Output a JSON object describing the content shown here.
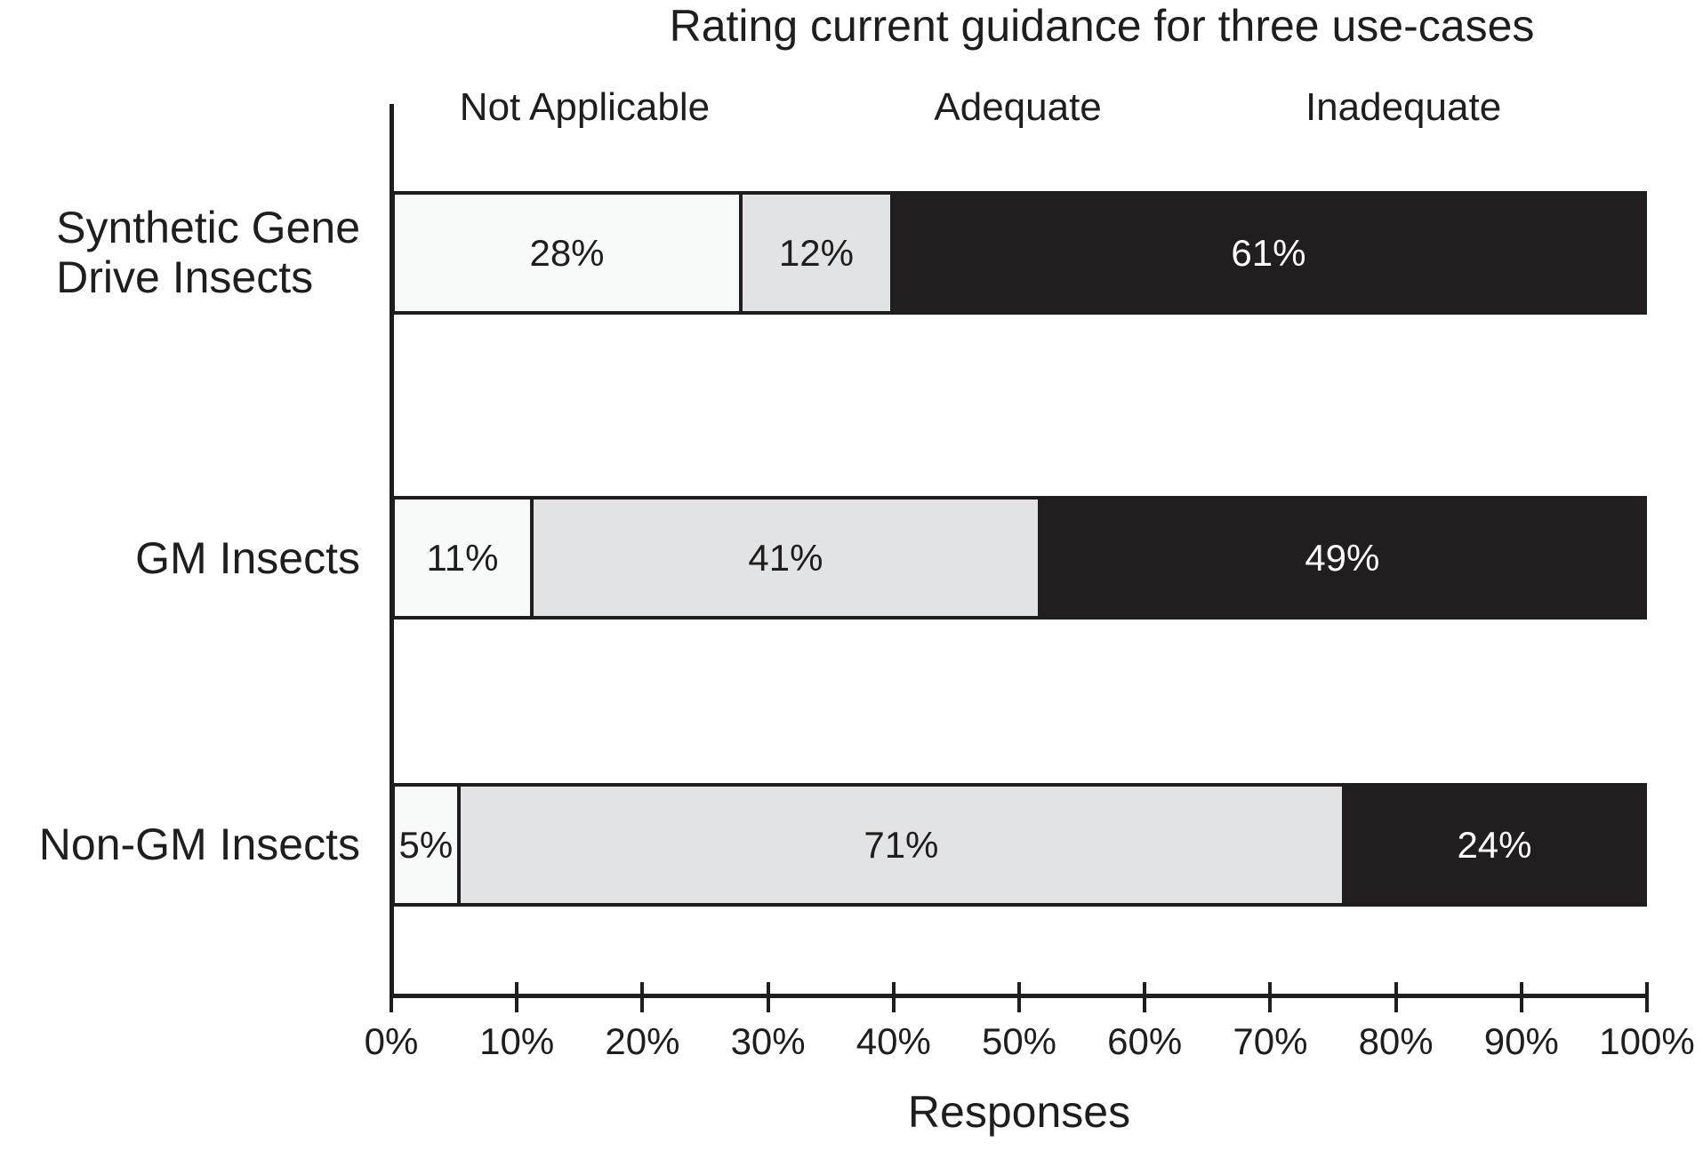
{
  "chart_data": {
    "type": "bar",
    "orientation": "horizontal",
    "stacked": true,
    "title": "Rating current guidance for three use-cases",
    "xlabel": "Responses",
    "unit": "%",
    "grid": false,
    "legend_position": "top-inline-headers",
    "categories": [
      {
        "label": "Synthetic Gene\nDrive Insects"
      },
      {
        "label": "GM Insects"
      },
      {
        "label": "Non-GM Insects"
      }
    ],
    "series": [
      {
        "name": "Not Applicable",
        "fill": "#f8f9f9",
        "text_color": "#1f1d1d",
        "values": [
          28,
          11,
          5
        ]
      },
      {
        "name": "Adequate",
        "fill": "#e2e3e5",
        "text_color": "#1f1d1d",
        "values": [
          12,
          41,
          71
        ]
      },
      {
        "name": "Inadequate",
        "fill": "#221e1f",
        "text_color": "#ffffff",
        "values": [
          61,
          49,
          24
        ]
      }
    ],
    "x_axis": {
      "min": 0,
      "max": 100,
      "step": 10,
      "tick_labels": [
        "0%",
        "10%",
        "20%",
        "30%",
        "40%",
        "50%",
        "60%",
        "70%",
        "80%",
        "90%",
        "100%"
      ]
    },
    "colors": {
      "axis": "#201d1e",
      "text": "#1f1d1d",
      "background": "#ffffff"
    }
  }
}
